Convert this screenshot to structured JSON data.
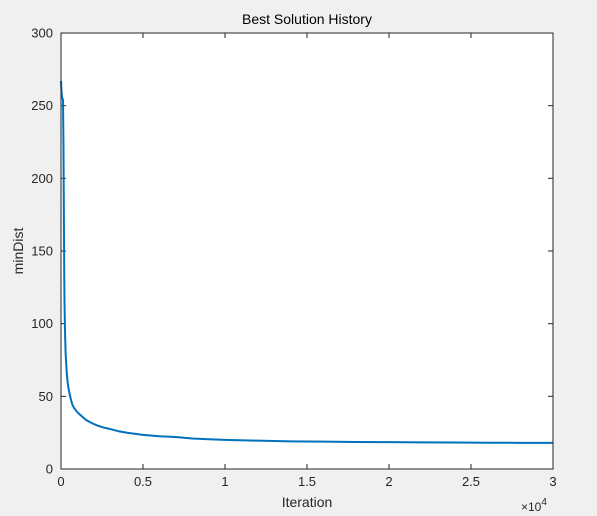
{
  "chart_data": {
    "type": "line",
    "title": "Best Solution History",
    "xlabel": "Iteration",
    "ylabel": "minDist",
    "xlim": [
      0,
      30000
    ],
    "ylim": [
      0,
      300
    ],
    "x_tick_labels": [
      "0",
      "0.5",
      "1",
      "1.5",
      "2",
      "2.5",
      "3"
    ],
    "x_tick_values": [
      0,
      5000,
      10000,
      15000,
      20000,
      25000,
      30000
    ],
    "x_exponent_base": "×10",
    "x_exponent_power": "4",
    "y_tick_labels": [
      "0",
      "50",
      "100",
      "150",
      "200",
      "250",
      "300"
    ],
    "y_tick_values": [
      0,
      50,
      100,
      150,
      200,
      250,
      300
    ],
    "grid": false,
    "line_color": "#0072bd",
    "series": [
      {
        "x": [
          0,
          30,
          60,
          90,
          120,
          150,
          180,
          200,
          220,
          250,
          280,
          320,
          360,
          400,
          450,
          500,
          600,
          700,
          800,
          1000,
          1200,
          1500,
          1800,
          2200,
          2600,
          3000,
          3500,
          4000,
          5000,
          6000,
          7000,
          8000,
          9000,
          10000,
          12000,
          14000,
          16000,
          18000,
          20000,
          22000,
          24000,
          26000,
          28000,
          30000
        ],
        "y": [
          267,
          260,
          256,
          255,
          254,
          225,
          165,
          130,
          110,
          92,
          80,
          72,
          65,
          60,
          56,
          53,
          48,
          44,
          42,
          39,
          37,
          34,
          32,
          30,
          28.5,
          27.5,
          26,
          25,
          23.5,
          22.5,
          22,
          21,
          20.5,
          20,
          19.5,
          19,
          18.8,
          18.6,
          18.5,
          18.3,
          18.2,
          18.1,
          18,
          18
        ]
      }
    ]
  }
}
